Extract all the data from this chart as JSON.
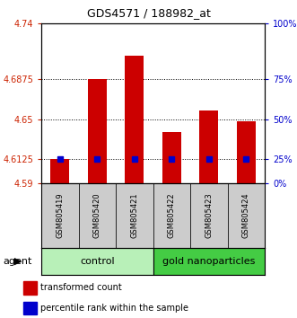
{
  "title": "GDS4571 / 188982_at",
  "samples": [
    "GSM805419",
    "GSM805420",
    "GSM805421",
    "GSM805422",
    "GSM805423",
    "GSM805424"
  ],
  "red_values": [
    4.613,
    4.6875,
    4.71,
    4.638,
    4.658,
    4.648
  ],
  "blue_values": [
    4.6125,
    4.6125,
    4.6125,
    4.6125,
    4.6125,
    4.6125
  ],
  "ymin": 4.59,
  "ymax": 4.74,
  "yticks_left": [
    4.59,
    4.6125,
    4.65,
    4.6875,
    4.74
  ],
  "yticks_left_labels": [
    "4.59",
    "4.6125",
    "4.65",
    "4.6875",
    "4.74"
  ],
  "yticks_right": [
    0,
    25,
    50,
    75,
    100
  ],
  "yticks_right_vals": [
    4.59,
    4.6125,
    4.65,
    4.6875,
    4.74
  ],
  "yticks_right_labels": [
    "0%",
    "25%",
    "50%",
    "75%",
    "100%"
  ],
  "groups": [
    {
      "label": "control",
      "indices": [
        0,
        1,
        2
      ],
      "color": "#b8f0b8"
    },
    {
      "label": "gold nanoparticles",
      "indices": [
        3,
        4,
        5
      ],
      "color": "#44cc44"
    }
  ],
  "agent_label": "agent",
  "bar_color": "#cc0000",
  "blue_color": "#0000cc",
  "bar_width": 0.5,
  "background_label": "#cccccc",
  "left_axis_color": "#cc2200",
  "right_axis_color": "#0000cc",
  "legend_red": "transformed count",
  "legend_blue": "percentile rank within the sample",
  "title_fontsize": 9,
  "tick_fontsize": 7,
  "sample_fontsize": 6,
  "group_fontsize": 8,
  "legend_fontsize": 7
}
